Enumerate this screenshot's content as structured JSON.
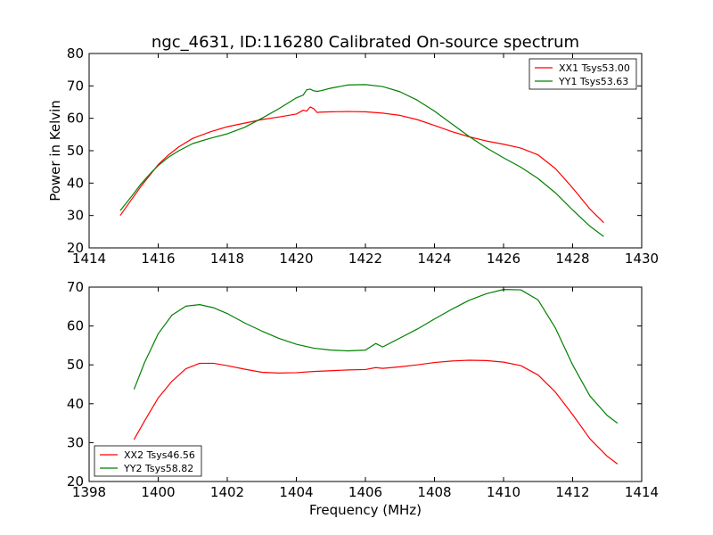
{
  "chart_data": [
    {
      "type": "line",
      "title": "ngc_4631, ID:116280 Calibrated On-source spectrum",
      "xlabel": "",
      "ylabel": "Power in Kelvin",
      "xlim": [
        1414,
        1430
      ],
      "ylim": [
        20,
        80
      ],
      "xticks": [
        1414,
        1416,
        1418,
        1420,
        1422,
        1424,
        1426,
        1428,
        1430
      ],
      "yticks": [
        20,
        30,
        40,
        50,
        60,
        70,
        80
      ],
      "legend_position": "top-right",
      "grid": false,
      "series": [
        {
          "name": "XX1 Tsys53.00",
          "color": "#ff0000",
          "x": [
            1414.9,
            1415.2,
            1415.5,
            1415.8,
            1416.0,
            1416.3,
            1416.6,
            1417.0,
            1417.5,
            1418.0,
            1418.5,
            1419.0,
            1419.5,
            1420.0,
            1420.2,
            1420.3,
            1420.4,
            1420.5,
            1420.6,
            1420.7,
            1421.0,
            1421.5,
            1422.0,
            1422.5,
            1423.0,
            1423.5,
            1424.0,
            1424.5,
            1425.0,
            1425.5,
            1426.0,
            1426.5,
            1427.0,
            1427.5,
            1428.0,
            1428.5,
            1428.9
          ],
          "values": [
            30.0,
            34.5,
            39.0,
            43.0,
            45.7,
            48.7,
            51.2,
            53.8,
            55.8,
            57.4,
            58.5,
            59.6,
            60.4,
            61.3,
            62.5,
            62.2,
            63.5,
            63.0,
            61.8,
            61.9,
            62.0,
            62.1,
            62.0,
            61.6,
            60.9,
            59.6,
            57.8,
            55.9,
            54.3,
            53.0,
            52.0,
            50.8,
            48.7,
            44.5,
            38.5,
            32.0,
            27.8
          ]
        },
        {
          "name": "YY1 Tsys53.63",
          "color": "#008000",
          "x": [
            1414.9,
            1415.2,
            1415.5,
            1415.8,
            1416.0,
            1416.3,
            1416.6,
            1417.0,
            1417.5,
            1418.0,
            1418.5,
            1419.0,
            1419.5,
            1420.0,
            1420.2,
            1420.3,
            1420.4,
            1420.5,
            1420.6,
            1420.7,
            1421.0,
            1421.5,
            1422.0,
            1422.5,
            1423.0,
            1423.5,
            1424.0,
            1424.5,
            1425.0,
            1425.5,
            1426.0,
            1426.5,
            1427.0,
            1427.5,
            1428.0,
            1428.5,
            1428.9
          ],
          "values": [
            31.5,
            35.5,
            39.7,
            43.3,
            45.4,
            48.0,
            50.0,
            52.2,
            53.8,
            55.2,
            57.2,
            60.0,
            63.0,
            66.3,
            67.2,
            68.8,
            69.0,
            68.5,
            68.3,
            68.5,
            69.3,
            70.3,
            70.4,
            69.8,
            68.2,
            65.6,
            62.2,
            58.3,
            54.4,
            50.9,
            47.8,
            44.9,
            41.4,
            37.0,
            31.7,
            26.7,
            23.5
          ]
        }
      ]
    },
    {
      "type": "line",
      "title": "",
      "xlabel": "Frequency (MHz)",
      "ylabel": "",
      "xlim": [
        1398,
        1414
      ],
      "ylim": [
        20,
        70
      ],
      "xticks": [
        1398,
        1400,
        1402,
        1404,
        1406,
        1408,
        1410,
        1412,
        1414
      ],
      "yticks": [
        20,
        30,
        40,
        50,
        60,
        70
      ],
      "legend_position": "bottom-left",
      "grid": false,
      "series": [
        {
          "name": "XX2 Tsys46.56",
          "color": "#ff0000",
          "x": [
            1399.3,
            1399.6,
            1400.0,
            1400.4,
            1400.8,
            1401.2,
            1401.6,
            1402.0,
            1402.5,
            1403.0,
            1403.5,
            1404.0,
            1404.5,
            1405.0,
            1405.5,
            1406.0,
            1406.3,
            1406.5,
            1407.0,
            1407.5,
            1408.0,
            1408.5,
            1409.0,
            1409.5,
            1410.0,
            1410.5,
            1411.0,
            1411.5,
            1412.0,
            1412.5,
            1413.0,
            1413.3
          ],
          "values": [
            30.8,
            35.5,
            41.5,
            45.8,
            49.0,
            50.4,
            50.4,
            49.8,
            48.9,
            48.1,
            47.9,
            48.0,
            48.3,
            48.5,
            48.7,
            48.8,
            49.3,
            49.1,
            49.5,
            50.0,
            50.6,
            51.0,
            51.2,
            51.1,
            50.7,
            49.8,
            47.4,
            43.0,
            37.2,
            31.0,
            26.5,
            24.5
          ]
        },
        {
          "name": "YY2 Tsys58.82",
          "color": "#008000",
          "x": [
            1399.3,
            1399.6,
            1400.0,
            1400.4,
            1400.8,
            1401.2,
            1401.6,
            1402.0,
            1402.5,
            1403.0,
            1403.5,
            1404.0,
            1404.5,
            1405.0,
            1405.5,
            1406.0,
            1406.3,
            1406.5,
            1407.0,
            1407.5,
            1408.0,
            1408.5,
            1409.0,
            1409.5,
            1410.0,
            1410.5,
            1411.0,
            1411.5,
            1412.0,
            1412.5,
            1413.0,
            1413.3
          ],
          "values": [
            43.7,
            50.5,
            58.0,
            62.8,
            65.1,
            65.5,
            64.7,
            63.2,
            60.8,
            58.7,
            56.8,
            55.3,
            54.3,
            53.8,
            53.6,
            53.8,
            55.5,
            54.6,
            56.9,
            59.2,
            61.8,
            64.3,
            66.6,
            68.3,
            69.4,
            69.3,
            66.7,
            59.5,
            50.0,
            42.0,
            37.0,
            35.0
          ]
        }
      ]
    }
  ]
}
